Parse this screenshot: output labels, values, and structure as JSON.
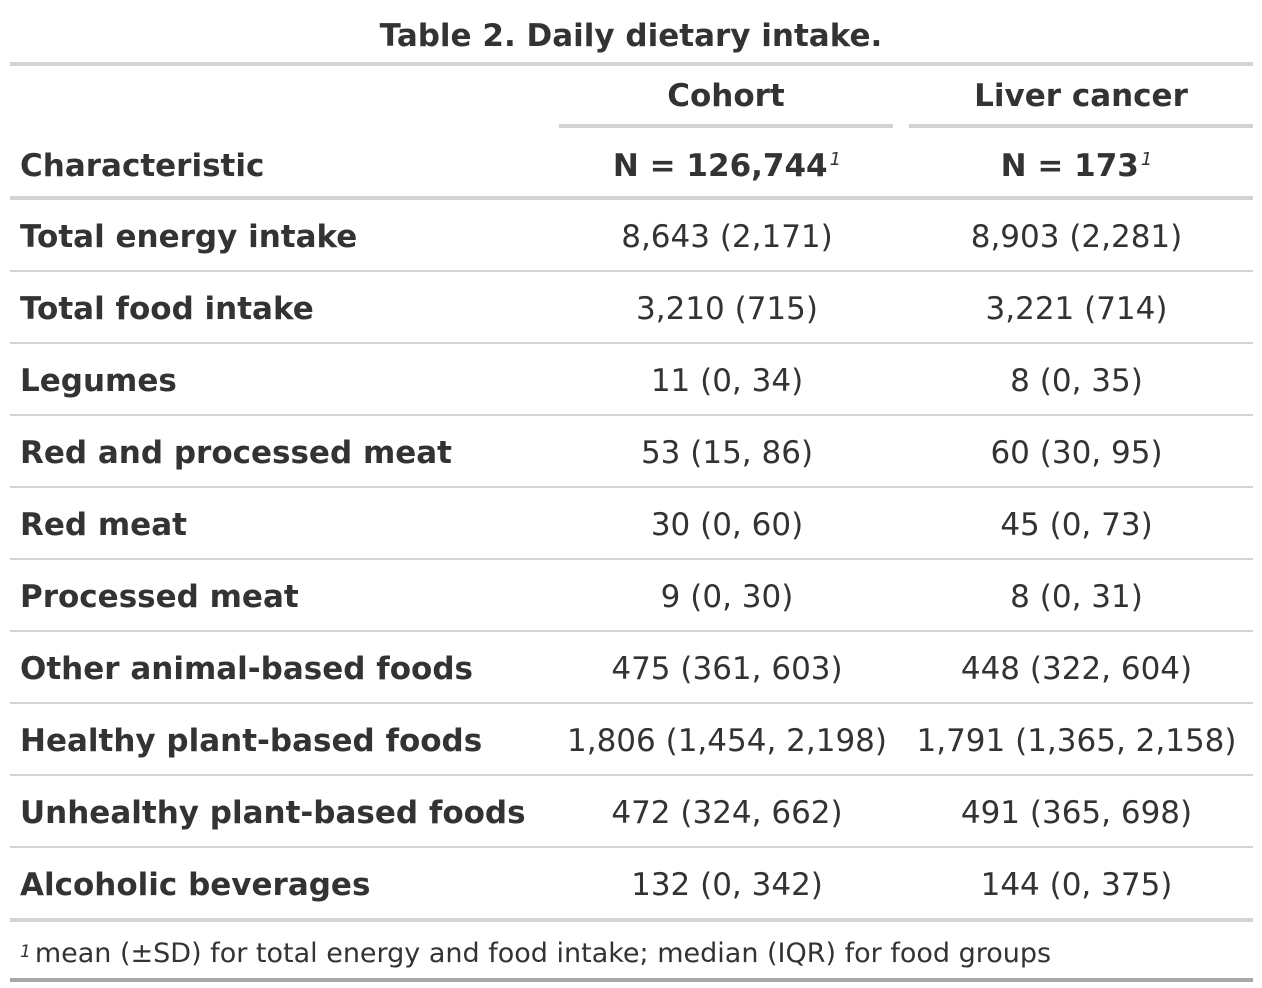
{
  "title": "Table 2. Daily dietary intake.",
  "header": {
    "characteristic": "Characteristic",
    "columns": [
      {
        "spanner": "Cohort",
        "n_label": "N = 126,744",
        "footnote_mark": "1"
      },
      {
        "spanner": "Liver cancer",
        "n_label": "N = 173",
        "footnote_mark": "1"
      }
    ]
  },
  "rows": [
    {
      "label": "Total energy intake",
      "cohort": "8,643 (2,171)",
      "liver_cancer": "8,903 (2,281)"
    },
    {
      "label": "Total food intake",
      "cohort": "3,210 (715)",
      "liver_cancer": "3,221 (714)"
    },
    {
      "label": "Legumes",
      "cohort": "11 (0, 34)",
      "liver_cancer": "8 (0, 35)"
    },
    {
      "label": "Red and processed meat",
      "cohort": "53 (15, 86)",
      "liver_cancer": "60 (30, 95)"
    },
    {
      "label": "Red meat",
      "cohort": "30 (0, 60)",
      "liver_cancer": "45 (0, 73)"
    },
    {
      "label": "Processed meat",
      "cohort": "9 (0, 30)",
      "liver_cancer": "8 (0, 31)"
    },
    {
      "label": "Other animal-based foods",
      "cohort": "475 (361, 603)",
      "liver_cancer": "448 (322, 604)"
    },
    {
      "label": "Healthy plant-based foods",
      "cohort": "1,806 (1,454, 2,198)",
      "liver_cancer": "1,791 (1,365, 2,158)"
    },
    {
      "label": "Unhealthy plant-based foods",
      "cohort": "472 (324, 662)",
      "liver_cancer": "491 (365, 698)"
    },
    {
      "label": "Alcoholic beverages",
      "cohort": "132 (0, 342)",
      "liver_cancer": "144 (0, 375)"
    }
  ],
  "footnote": {
    "mark": "1",
    "text": "mean (±SD) for total energy and food intake; median (IQR) for food groups"
  }
}
